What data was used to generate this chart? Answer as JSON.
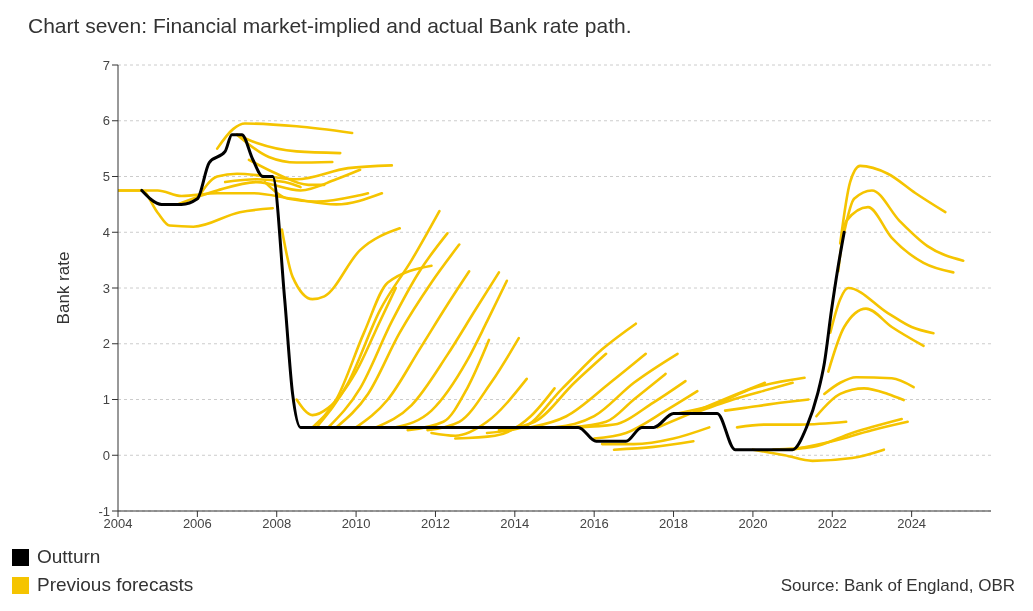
{
  "chart_data": {
    "type": "line",
    "title": "Chart seven: Financial market-implied and actual Bank rate path.",
    "ylabel": "Bank rate",
    "xlim": [
      2004,
      2026
    ],
    "xticks": [
      2004,
      2006,
      2008,
      2010,
      2012,
      2014,
      2016,
      2018,
      2020,
      2022,
      2024
    ],
    "ylim": [
      -1,
      7
    ],
    "yticks": [
      -1,
      0,
      1,
      2,
      3,
      4,
      5,
      6,
      7
    ],
    "grid": "y",
    "legend": "bottom",
    "annotations": [
      "Source: Bank of England, OBR"
    ],
    "series": [
      {
        "name": "Outturn",
        "color": "#000000",
        "x": [
          2004.6,
          2005.1,
          2005.6,
          2006.0,
          2006.3,
          2006.7,
          2006.87,
          2007.12,
          2007.4,
          2007.65,
          2007.9,
          2008.2,
          2008.4,
          2008.6,
          2015.6,
          2016.05,
          2016.8,
          2017.2,
          2017.5,
          2018.0,
          2019.1,
          2019.55,
          2021.0,
          2021.35,
          2021.63,
          2021.8,
          2021.98,
          2022.14,
          2022.3
        ],
        "values": [
          4.75,
          4.5,
          4.5,
          4.6,
          5.25,
          5.45,
          5.75,
          5.75,
          5.3,
          5.0,
          5.0,
          2.8,
          1.1,
          0.5,
          0.5,
          0.25,
          0.25,
          0.5,
          0.5,
          0.75,
          0.75,
          0.1,
          0.1,
          0.5,
          1.1,
          1.65,
          2.6,
          3.35,
          4.0
        ]
      },
      {
        "name": "Previous forecasts",
        "color": "#f5c400",
        "x": [
          2004.0,
          2004.6,
          2005.0,
          2005.3,
          2005.9,
          2007.07,
          2007.9
        ],
        "values": [
          4.75,
          4.75,
          4.35,
          4.12,
          4.1,
          4.36,
          4.43
        ]
      },
      {
        "color": "#f5c400",
        "x": [
          2004.0,
          2005.0,
          2005.6,
          2006.5,
          2007.4,
          2008.4,
          2009.5,
          2010.65
        ],
        "values": [
          4.75,
          4.75,
          4.65,
          4.7,
          4.7,
          4.6,
          4.5,
          4.7
        ]
      },
      {
        "color": "#f5c400",
        "x": [
          2005.5,
          2006.5,
          2007.5,
          2008.6,
          2009.5,
          2010.1
        ],
        "values": [
          4.5,
          4.75,
          4.9,
          4.75,
          4.95,
          5.12
        ]
      },
      {
        "color": "#f5c400",
        "x": [
          2006.0,
          2006.5,
          2007.0,
          2007.8,
          2008.5,
          2009.8,
          2010.9
        ],
        "values": [
          4.6,
          5.0,
          5.05,
          5.0,
          4.95,
          5.15,
          5.2
        ]
      },
      {
        "color": "#f5c400",
        "x": [
          2006.5,
          2006.9,
          2007.2,
          2008.5,
          2009.9
        ],
        "values": [
          5.5,
          5.85,
          5.95,
          5.9,
          5.78
        ]
      },
      {
        "color": "#f5c400",
        "x": [
          2007.0,
          2007.5,
          2008.5,
          2009.6
        ],
        "values": [
          5.75,
          5.6,
          5.45,
          5.42
        ]
      },
      {
        "color": "#f5c400",
        "x": [
          2007.0,
          2007.8,
          2008.5,
          2009.4
        ],
        "values": [
          5.75,
          5.35,
          5.25,
          5.26
        ]
      },
      {
        "color": "#f5c400",
        "x": [
          2007.3,
          2008.0,
          2008.8,
          2009.2
        ],
        "values": [
          5.3,
          5.05,
          4.85,
          4.85
        ]
      },
      {
        "color": "#f5c400",
        "x": [
          2006.7,
          2007.5,
          2008.2,
          2008.6
        ],
        "values": [
          4.9,
          4.95,
          4.9,
          4.81
        ]
      },
      {
        "color": "#f5c400",
        "x": [
          2007.7,
          2008.3,
          2009.0,
          2010.0,
          2010.3
        ],
        "values": [
          4.9,
          4.6,
          4.55,
          4.65,
          4.7
        ]
      },
      {
        "color": "#f5c400",
        "x": [
          2008.13,
          2008.4,
          2008.9,
          2009.2,
          2010.1,
          2011.1
        ],
        "values": [
          4.05,
          3.2,
          2.8,
          2.85,
          3.68,
          4.07
        ]
      },
      {
        "color": "#f5c400",
        "x": [
          2008.5,
          2008.9,
          2009.3,
          2010.0,
          2010.6,
          2011.0
        ],
        "values": [
          1.0,
          0.72,
          0.85,
          1.5,
          2.4,
          3.0
        ]
      },
      {
        "color": "#f5c400",
        "x": [
          2008.9,
          2009.5,
          2010.2,
          2010.8,
          2011.9
        ],
        "values": [
          0.5,
          1.0,
          2.2,
          3.1,
          3.4
        ]
      },
      {
        "color": "#f5c400",
        "x": [
          2009.0,
          2009.8,
          2010.6,
          2011.4,
          2012.1
        ],
        "values": [
          0.5,
          1.3,
          2.6,
          3.5,
          4.38
        ]
      },
      {
        "color": "#f5c400",
        "x": [
          2009.3,
          2010.1,
          2010.9,
          2011.6,
          2012.3
        ],
        "values": [
          0.5,
          1.2,
          2.4,
          3.3,
          3.98
        ]
      },
      {
        "color": "#f5c400",
        "x": [
          2009.5,
          2010.3,
          2011.1,
          2011.9,
          2012.6
        ],
        "values": [
          0.5,
          1.1,
          2.2,
          3.1,
          3.78
        ]
      },
      {
        "color": "#f5c400",
        "x": [
          2010.0,
          2010.8,
          2011.6,
          2012.3,
          2012.85
        ],
        "values": [
          0.5,
          1.0,
          1.9,
          2.7,
          3.3
        ]
      },
      {
        "color": "#f5c400",
        "x": [
          2010.5,
          2011.4,
          2012.3,
          2013.0,
          2013.6
        ],
        "values": [
          0.5,
          0.9,
          1.8,
          2.6,
          3.28
        ]
      },
      {
        "color": "#f5c400",
        "x": [
          2011.0,
          2011.9,
          2012.8,
          2013.3,
          2013.8
        ],
        "values": [
          0.5,
          0.8,
          1.7,
          2.4,
          3.13
        ]
      },
      {
        "color": "#f5c400",
        "x": [
          2011.3,
          2012.2,
          2012.8,
          2013.35
        ],
        "values": [
          0.45,
          0.6,
          1.2,
          2.07
        ]
      },
      {
        "color": "#f5c400",
        "x": [
          2011.8,
          2012.6,
          2013.4,
          2014.1
        ],
        "values": [
          0.45,
          0.6,
          1.3,
          2.1
        ]
      },
      {
        "color": "#f5c400",
        "x": [
          2011.9,
          2012.5,
          2013.3,
          2014.3
        ],
        "values": [
          0.4,
          0.35,
          0.6,
          1.37
        ]
      },
      {
        "color": "#f5c400",
        "x": [
          2012.5,
          2013.5,
          2014.4,
          2015.0
        ],
        "values": [
          0.3,
          0.35,
          0.7,
          1.2
        ]
      },
      {
        "color": "#f5c400",
        "x": [
          2013.3,
          2014.2,
          2015.2,
          2016.2,
          2017.05
        ],
        "values": [
          0.4,
          0.5,
          1.2,
          1.9,
          2.36
        ]
      },
      {
        "color": "#f5c400",
        "x": [
          2013.6,
          2014.5,
          2015.5,
          2016.3
        ],
        "values": [
          0.45,
          0.6,
          1.3,
          1.82
        ]
      },
      {
        "color": "#f5c400",
        "x": [
          2014.4,
          2015.3,
          2016.4,
          2017.3
        ],
        "values": [
          0.5,
          0.7,
          1.3,
          1.82
        ]
      },
      {
        "color": "#f5c400",
        "x": [
          2015.0,
          2016.0,
          2017.0,
          2018.1
        ],
        "values": [
          0.5,
          0.7,
          1.3,
          1.82
        ]
      },
      {
        "color": "#f5c400",
        "x": [
          2015.4,
          2016.3,
          2017.0,
          2017.8
        ],
        "values": [
          0.5,
          0.6,
          1.0,
          1.46
        ]
      },
      {
        "color": "#f5c400",
        "x": [
          2015.6,
          2016.5,
          2017.5,
          2018.3
        ],
        "values": [
          0.5,
          0.55,
          0.95,
          1.33
        ]
      },
      {
        "color": "#f5c400",
        "x": [
          2016.0,
          2016.8,
          2017.8,
          2018.6
        ],
        "values": [
          0.3,
          0.4,
          0.8,
          1.15
        ]
      },
      {
        "color": "#f5c400",
        "x": [
          2016.2,
          2017.0,
          2018.0,
          2018.9
        ],
        "values": [
          0.2,
          0.2,
          0.3,
          0.5
        ]
      },
      {
        "color": "#f5c400",
        "x": [
          2016.5,
          2017.5,
          2018.5
        ],
        "values": [
          0.1,
          0.15,
          0.25
        ]
      },
      {
        "color": "#f5c400",
        "x": [
          2017.6,
          2018.6,
          2019.6,
          2020.3
        ],
        "values": [
          0.5,
          0.8,
          1.1,
          1.3
        ]
      },
      {
        "color": "#f5c400",
        "x": [
          2018.1,
          2019.0,
          2020.0,
          2021.3
        ],
        "values": [
          0.75,
          0.9,
          1.2,
          1.39
        ]
      },
      {
        "color": "#f5c400",
        "x": [
          2018.5,
          2019.5,
          2020.5,
          2021.0
        ],
        "values": [
          0.75,
          1.0,
          1.2,
          1.3
        ]
      },
      {
        "color": "#f5c400",
        "x": [
          2019.3,
          2019.8,
          2020.8,
          2021.4
        ],
        "values": [
          0.8,
          0.85,
          0.95,
          1.0
        ]
      },
      {
        "color": "#f5c400",
        "x": [
          2019.6,
          2020.3,
          2021.2,
          2022.35
        ],
        "values": [
          0.5,
          0.55,
          0.55,
          0.6
        ]
      },
      {
        "color": "#f5c400",
        "x": [
          2020.0,
          2020.8,
          2021.5,
          2022.5,
          2023.3
        ],
        "values": [
          0.1,
          0.0,
          -0.1,
          -0.05,
          0.1
        ]
      },
      {
        "color": "#f5c400",
        "x": [
          2020.5,
          2021.5,
          2022.5,
          2023.75
        ],
        "values": [
          0.1,
          0.15,
          0.4,
          0.65
        ]
      },
      {
        "color": "#f5c400",
        "x": [
          2021.0,
          2022.0,
          2023.0,
          2023.9
        ],
        "values": [
          0.1,
          0.25,
          0.45,
          0.6
        ]
      },
      {
        "color": "#f5c400",
        "x": [
          2021.8,
          2022.2,
          2022.6,
          2023.5,
          2024.05
        ],
        "values": [
          1.1,
          1.3,
          1.4,
          1.38,
          1.22
        ]
      },
      {
        "color": "#f5c400",
        "x": [
          2021.6,
          2022.2,
          2022.8,
          2023.4,
          2023.8
        ],
        "values": [
          0.7,
          1.1,
          1.2,
          1.1,
          0.99
        ]
      },
      {
        "color": "#f5c400",
        "x": [
          2021.9,
          2022.3,
          2022.85,
          2023.5,
          2024.3
        ],
        "values": [
          1.5,
          2.3,
          2.63,
          2.3,
          1.96
        ]
      },
      {
        "color": "#f5c400",
        "x": [
          2021.95,
          2022.2,
          2022.4,
          2023.4,
          2024.0,
          2024.55
        ],
        "values": [
          2.2,
          2.8,
          3.0,
          2.55,
          2.3,
          2.19
        ]
      },
      {
        "color": "#f5c400",
        "x": [
          2022.15,
          2022.35,
          2022.9,
          2023.5,
          2024.3,
          2025.05
        ],
        "values": [
          3.3,
          4.2,
          4.45,
          3.9,
          3.45,
          3.28
        ]
      },
      {
        "color": "#f5c400",
        "x": [
          2022.3,
          2022.55,
          2023.0,
          2023.7,
          2024.4,
          2025.3
        ],
        "values": [
          4.0,
          4.6,
          4.75,
          4.2,
          3.75,
          3.49
        ]
      },
      {
        "color": "#f5c400",
        "x": [
          2022.2,
          2022.45,
          2022.7,
          2023.4,
          2024.1,
          2024.85
        ],
        "values": [
          3.8,
          4.9,
          5.19,
          5.05,
          4.7,
          4.36
        ]
      }
    ]
  }
}
